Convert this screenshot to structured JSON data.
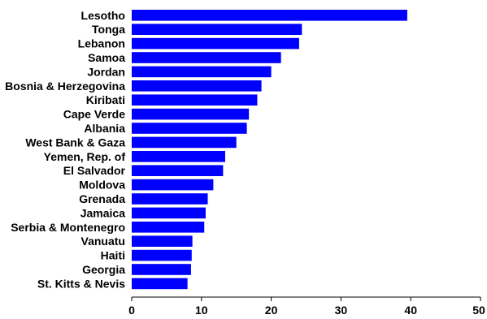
{
  "chart_data": {
    "type": "bar",
    "orientation": "horizontal",
    "title": "",
    "xlabel": "",
    "ylabel": "",
    "categories": [
      "Lesotho",
      "Tonga",
      "Lebanon",
      "Samoa",
      "Jordan",
      "Bosnia & Herzegovina",
      "Kiribati",
      "Cape Verde",
      "Albania",
      "West Bank & Gaza",
      "Yemen, Rep. of",
      "El Salvador",
      "Moldova",
      "Grenada",
      "Jamaica",
      "Serbia & Montenegro",
      "Vanuatu",
      "Haiti",
      "Georgia",
      "St. Kitts & Nevis"
    ],
    "values": [
      39.5,
      24.4,
      24.0,
      21.4,
      20.0,
      18.6,
      18.0,
      16.8,
      16.5,
      15.0,
      13.4,
      13.1,
      11.7,
      10.9,
      10.6,
      10.4,
      8.7,
      8.6,
      8.5,
      8.0
    ],
    "xlim": [
      0,
      50
    ],
    "xticks": [
      0,
      10,
      20,
      30,
      40,
      50
    ],
    "xtick_labels": [
      "0",
      "10",
      "20",
      "30",
      "40",
      "50"
    ],
    "bar_color": "#0000ff",
    "grid": false,
    "legend": "none"
  }
}
